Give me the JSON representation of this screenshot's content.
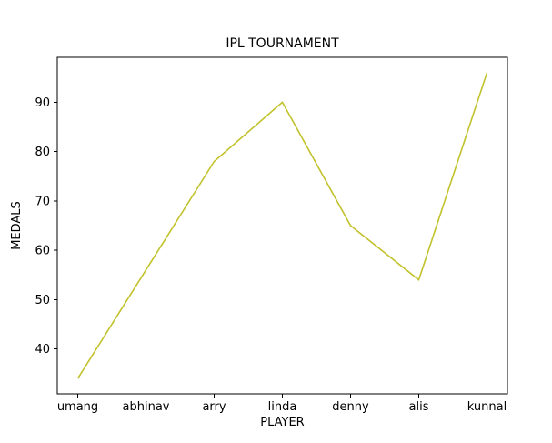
{
  "chart_data": {
    "type": "line",
    "title": "IPL TOURNAMENT",
    "xlabel": "PLAYER",
    "ylabel": "MEDALS",
    "categories": [
      "umang",
      "abhinav",
      "arry",
      "linda",
      "denny",
      "alis",
      "kunnal"
    ],
    "series": [
      {
        "name": "medals",
        "values": [
          34,
          56,
          78,
          90,
          65,
          54,
          96
        ]
      }
    ],
    "yticks": [
      40,
      50,
      60,
      70,
      80,
      90
    ],
    "ylim": [
      30.9,
      99.1
    ],
    "grid": false,
    "legend": "none",
    "line_color": "#c2c22d",
    "axis_color": "#000000",
    "background_color": "#ffffff"
  }
}
